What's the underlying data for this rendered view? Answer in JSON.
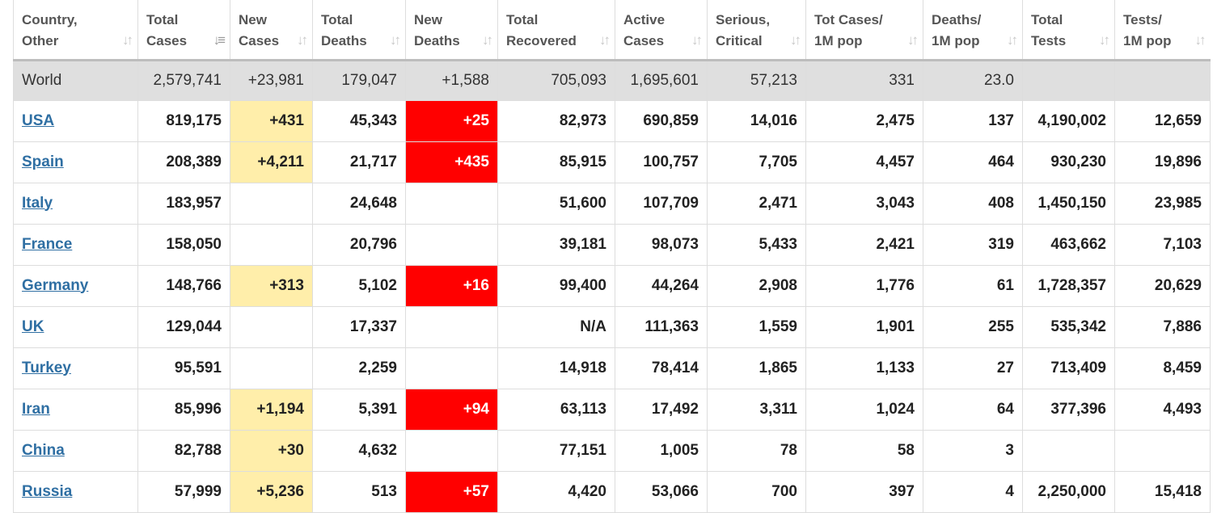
{
  "columns": [
    {
      "line1": "Country,",
      "line2": "Other"
    },
    {
      "line1": "Total",
      "line2": "Cases",
      "active_sort": true
    },
    {
      "line1": "New",
      "line2": "Cases"
    },
    {
      "line1": "Total",
      "line2": "Deaths"
    },
    {
      "line1": "New",
      "line2": "Deaths"
    },
    {
      "line1": "Total",
      "line2": "Recovered"
    },
    {
      "line1": "Active",
      "line2": "Cases"
    },
    {
      "line1": "Serious,",
      "line2": "Critical"
    },
    {
      "line1": "Tot Cases/",
      "line2": "1M pop"
    },
    {
      "line1": "Deaths/",
      "line2": "1M pop"
    },
    {
      "line1": "Total",
      "line2": "Tests"
    },
    {
      "line1": "Tests/",
      "line2": "1M pop"
    }
  ],
  "sort_icon": "sort-arrows-icon",
  "sort_glyph": "↓↑",
  "sort_glyph_active": "↓≡",
  "colors": {
    "new_cases_highlight": "#ffeeaa",
    "new_deaths_highlight": "#ff0000",
    "link": "#2f6fa3",
    "world_row": "#dfdfdf"
  },
  "world": [
    "World",
    "2,579,741",
    "+23,981",
    "179,047",
    "+1,588",
    "705,093",
    "1,695,601",
    "57,213",
    "331",
    "23.0",
    "",
    ""
  ],
  "rows": [
    [
      "USA",
      "819,175",
      "+431",
      "45,343",
      "+25",
      "82,973",
      "690,859",
      "14,016",
      "2,475",
      "137",
      "4,190,002",
      "12,659"
    ],
    [
      "Spain",
      "208,389",
      "+4,211",
      "21,717",
      "+435",
      "85,915",
      "100,757",
      "7,705",
      "4,457",
      "464",
      "930,230",
      "19,896"
    ],
    [
      "Italy",
      "183,957",
      "",
      "24,648",
      "",
      "51,600",
      "107,709",
      "2,471",
      "3,043",
      "408",
      "1,450,150",
      "23,985"
    ],
    [
      "France",
      "158,050",
      "",
      "20,796",
      "",
      "39,181",
      "98,073",
      "5,433",
      "2,421",
      "319",
      "463,662",
      "7,103"
    ],
    [
      "Germany",
      "148,766",
      "+313",
      "5,102",
      "+16",
      "99,400",
      "44,264",
      "2,908",
      "1,776",
      "61",
      "1,728,357",
      "20,629"
    ],
    [
      "UK",
      "129,044",
      "",
      "17,337",
      "",
      "N/A",
      "111,363",
      "1,559",
      "1,901",
      "255",
      "535,342",
      "7,886"
    ],
    [
      "Turkey",
      "95,591",
      "",
      "2,259",
      "",
      "14,918",
      "78,414",
      "1,865",
      "1,133",
      "27",
      "713,409",
      "8,459"
    ],
    [
      "Iran",
      "85,996",
      "+1,194",
      "5,391",
      "+94",
      "63,113",
      "17,492",
      "3,311",
      "1,024",
      "64",
      "377,396",
      "4,493"
    ],
    [
      "China",
      "82,788",
      "+30",
      "4,632",
      "",
      "77,151",
      "1,005",
      "78",
      "58",
      "3",
      "",
      ""
    ],
    [
      "Russia",
      "57,999",
      "+5,236",
      "513",
      "+57",
      "4,420",
      "53,066",
      "700",
      "397",
      "4",
      "2,250,000",
      "15,418"
    ]
  ]
}
